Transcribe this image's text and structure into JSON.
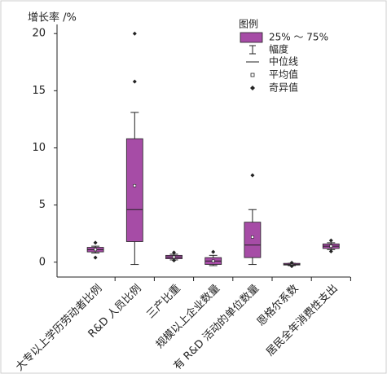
{
  "chart_data": {
    "type": "box",
    "y_label": "增长率 /%",
    "categories": [
      "大专以上学历劳动者比例",
      "R&D 人员比例",
      "三产比重",
      "规模以上企业数量",
      "有 R&D 活动的单位数量",
      "恩格尔系数",
      "居民全年消费性支出"
    ],
    "color": "#a64ca6",
    "boxes": [
      {
        "whisker_low": 0.8,
        "q1": 0.9,
        "median": 1.1,
        "q3": 1.3,
        "whisker_high": 1.4,
        "mean": 1.1,
        "outliers": [
          1.7,
          0.4
        ]
      },
      {
        "whisker_low": -0.2,
        "q1": 1.8,
        "median": 4.6,
        "q3": 10.8,
        "whisker_high": 13.1,
        "mean": 6.7,
        "outliers": [
          15.8,
          20
        ]
      },
      {
        "whisker_low": 0.2,
        "q1": 0.3,
        "median": 0.45,
        "q3": 0.6,
        "whisker_high": 0.7,
        "mean": 0.45,
        "outliers": [
          0.85,
          0.15
        ]
      },
      {
        "whisker_low": -0.3,
        "q1": -0.2,
        "median": 0.1,
        "q3": 0.4,
        "whisker_high": 0.6,
        "mean": 0.1,
        "outliers": [
          0.9
        ]
      },
      {
        "whisker_low": -0.2,
        "q1": 0.4,
        "median": 1.5,
        "q3": 3.5,
        "whisker_high": 4.6,
        "mean": 2.2,
        "outliers": [
          7.6
        ]
      },
      {
        "whisker_low": -0.3,
        "q1": -0.25,
        "median": -0.2,
        "q3": -0.1,
        "whisker_high": -0.1,
        "mean": -0.2,
        "outliers": [
          -0.05,
          -0.35
        ]
      },
      {
        "whisker_low": 1.1,
        "q1": 1.2,
        "median": 1.4,
        "q3": 1.6,
        "whisker_high": 1.7,
        "mean": 1.4,
        "outliers": [
          1.9,
          0.95
        ]
      }
    ],
    "ylim": [
      -1.3,
      20.8
    ],
    "yticks": [
      0,
      5,
      10,
      15,
      20
    ],
    "legend": {
      "title": "图例",
      "box": "25% ～ 75%",
      "whisker": "幅度",
      "median": "中位线",
      "mean": "平均值",
      "outlier": "奇异值"
    }
  }
}
